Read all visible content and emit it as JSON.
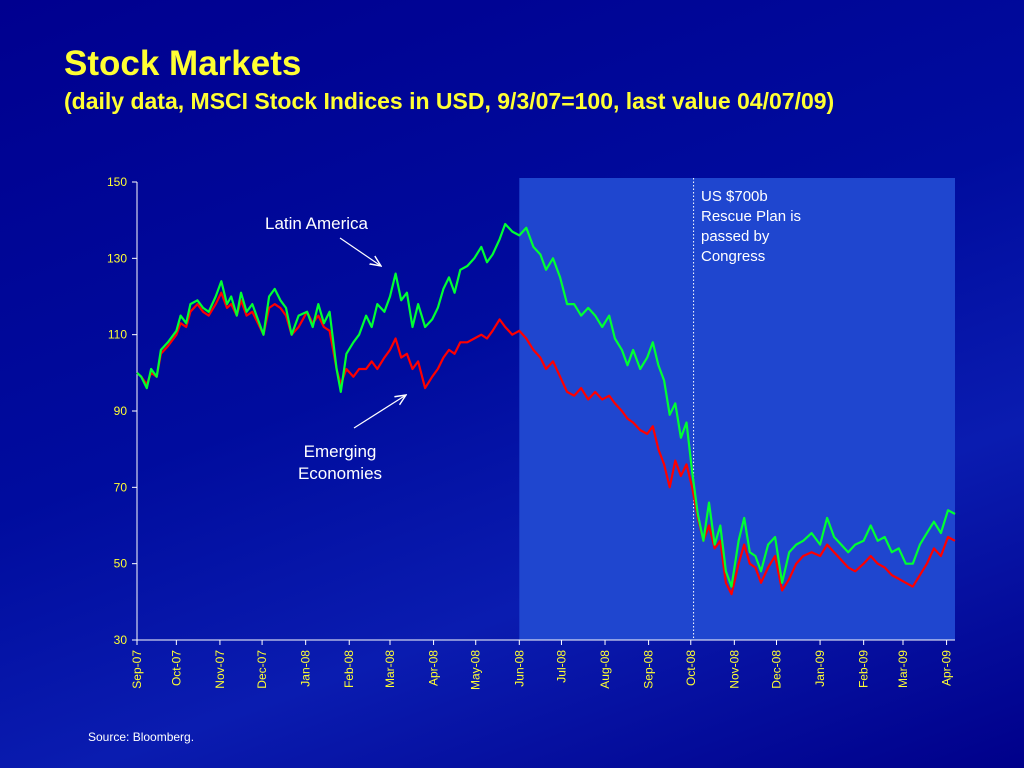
{
  "title": "Stock Markets",
  "subtitle": "(daily data, MSCI Stock Indices in USD, 9/3/07=100, last value 04/07/09)",
  "source": "Source: Bloomberg.",
  "annotations": {
    "latin_america": "Latin America",
    "emerging_economies_line1": "Emerging",
    "emerging_economies_line2": "Economies",
    "rescue_line1": "US $700b",
    "rescue_line2": "Rescue Plan is",
    "rescue_line3": "passed by",
    "rescue_line4": "Congress"
  },
  "colors": {
    "background": "#000c9e",
    "title": "#ffff33",
    "latin_america": "#00ff33",
    "emerging_economies": "#ff0000",
    "shaded_region": "#1f46cf",
    "axis": "#ffffff"
  },
  "chart_data": {
    "type": "line",
    "xlabel": "",
    "ylabel": "",
    "ylim": [
      30,
      150
    ],
    "yticks": [
      30,
      50,
      70,
      90,
      110,
      130,
      150
    ],
    "xlim": [
      "2007-09-03",
      "2009-04-07"
    ],
    "xticks": [
      "Sep-07",
      "Oct-07",
      "Nov-07",
      "Dec-07",
      "Jan-08",
      "Feb-08",
      "Mar-08",
      "Apr-08",
      "May-08",
      "Jun-08",
      "Jul-08",
      "Aug-08",
      "Sep-08",
      "Oct-08",
      "Nov-08",
      "Dec-08",
      "Jan-09",
      "Feb-09",
      "Mar-09",
      "Apr-09"
    ],
    "xtick_dates": [
      "2007-09-01",
      "2007-10-01",
      "2007-11-01",
      "2007-12-01",
      "2008-01-01",
      "2008-02-01",
      "2008-03-01",
      "2008-04-01",
      "2008-05-01",
      "2008-06-01",
      "2008-07-01",
      "2008-08-01",
      "2008-09-01",
      "2008-10-01",
      "2008-11-01",
      "2008-12-01",
      "2009-01-01",
      "2009-02-01",
      "2009-03-01",
      "2009-04-01"
    ],
    "shaded_region": [
      "2008-06-01",
      "2009-04-07"
    ],
    "event_line": "2008-10-03",
    "grid": false,
    "series": [
      {
        "name": "Latin America",
        "color": "#00ff33",
        "points": [
          [
            "2007-09-03",
            100
          ],
          [
            "2007-09-06",
            99
          ],
          [
            "2007-09-10",
            96
          ],
          [
            "2007-09-13",
            101
          ],
          [
            "2007-09-17",
            99
          ],
          [
            "2007-09-20",
            106
          ],
          [
            "2007-09-25",
            108
          ],
          [
            "2007-10-01",
            111
          ],
          [
            "2007-10-04",
            115
          ],
          [
            "2007-10-08",
            113
          ],
          [
            "2007-10-11",
            118
          ],
          [
            "2007-10-16",
            119
          ],
          [
            "2007-10-20",
            117
          ],
          [
            "2007-10-24",
            116
          ],
          [
            "2007-10-29",
            120
          ],
          [
            "2007-11-02",
            124
          ],
          [
            "2007-11-06",
            118
          ],
          [
            "2007-11-09",
            120
          ],
          [
            "2007-11-13",
            115
          ],
          [
            "2007-11-16",
            121
          ],
          [
            "2007-11-20",
            116
          ],
          [
            "2007-11-24",
            118
          ],
          [
            "2007-11-28",
            114
          ],
          [
            "2007-12-02",
            110
          ],
          [
            "2007-12-06",
            120
          ],
          [
            "2007-12-10",
            122
          ],
          [
            "2007-12-14",
            119
          ],
          [
            "2007-12-18",
            117
          ],
          [
            "2007-12-22",
            110
          ],
          [
            "2007-12-27",
            115
          ],
          [
            "2008-01-02",
            116
          ],
          [
            "2008-01-06",
            112
          ],
          [
            "2008-01-10",
            118
          ],
          [
            "2008-01-14",
            113
          ],
          [
            "2008-01-18",
            116
          ],
          [
            "2008-01-23",
            101
          ],
          [
            "2008-01-26",
            95
          ],
          [
            "2008-01-30",
            105
          ],
          [
            "2008-02-04",
            108
          ],
          [
            "2008-02-08",
            110
          ],
          [
            "2008-02-13",
            115
          ],
          [
            "2008-02-17",
            112
          ],
          [
            "2008-02-21",
            118
          ],
          [
            "2008-02-26",
            116
          ],
          [
            "2008-03-01",
            120
          ],
          [
            "2008-03-05",
            126
          ],
          [
            "2008-03-09",
            119
          ],
          [
            "2008-03-13",
            121
          ],
          [
            "2008-03-17",
            112
          ],
          [
            "2008-03-21",
            118
          ],
          [
            "2008-03-26",
            112
          ],
          [
            "2008-03-31",
            114
          ],
          [
            "2008-04-04",
            117
          ],
          [
            "2008-04-08",
            122
          ],
          [
            "2008-04-12",
            125
          ],
          [
            "2008-04-16",
            121
          ],
          [
            "2008-04-20",
            127
          ],
          [
            "2008-04-25",
            128
          ],
          [
            "2008-04-30",
            130
          ],
          [
            "2008-05-05",
            133
          ],
          [
            "2008-05-09",
            129
          ],
          [
            "2008-05-13",
            131
          ],
          [
            "2008-05-18",
            135
          ],
          [
            "2008-05-22",
            139
          ],
          [
            "2008-05-27",
            137
          ],
          [
            "2008-06-01",
            136
          ],
          [
            "2008-06-06",
            138
          ],
          [
            "2008-06-11",
            133
          ],
          [
            "2008-06-16",
            131
          ],
          [
            "2008-06-20",
            127
          ],
          [
            "2008-06-25",
            130
          ],
          [
            "2008-06-30",
            125
          ],
          [
            "2008-07-05",
            118
          ],
          [
            "2008-07-10",
            118
          ],
          [
            "2008-07-15",
            115
          ],
          [
            "2008-07-20",
            117
          ],
          [
            "2008-07-25",
            115
          ],
          [
            "2008-07-30",
            112
          ],
          [
            "2008-08-04",
            115
          ],
          [
            "2008-08-08",
            109
          ],
          [
            "2008-08-13",
            106
          ],
          [
            "2008-08-17",
            102
          ],
          [
            "2008-08-21",
            106
          ],
          [
            "2008-08-26",
            101
          ],
          [
            "2008-08-31",
            104
          ],
          [
            "2008-09-04",
            108
          ],
          [
            "2008-09-08",
            102
          ],
          [
            "2008-09-12",
            98
          ],
          [
            "2008-09-16",
            89
          ],
          [
            "2008-09-20",
            92
          ],
          [
            "2008-09-24",
            83
          ],
          [
            "2008-09-28",
            87
          ],
          [
            "2008-10-02",
            74
          ],
          [
            "2008-10-06",
            63
          ],
          [
            "2008-10-10",
            56
          ],
          [
            "2008-10-14",
            66
          ],
          [
            "2008-10-18",
            55
          ],
          [
            "2008-10-22",
            60
          ],
          [
            "2008-10-26",
            48
          ],
          [
            "2008-10-30",
            44
          ],
          [
            "2008-11-04",
            56
          ],
          [
            "2008-11-08",
            62
          ],
          [
            "2008-11-12",
            53
          ],
          [
            "2008-11-16",
            52
          ],
          [
            "2008-11-20",
            48
          ],
          [
            "2008-11-25",
            55
          ],
          [
            "2008-11-30",
            57
          ],
          [
            "2008-12-05",
            45
          ],
          [
            "2008-12-10",
            53
          ],
          [
            "2008-12-15",
            55
          ],
          [
            "2008-12-20",
            56
          ],
          [
            "2008-12-26",
            58
          ],
          [
            "2009-01-01",
            55
          ],
          [
            "2009-01-06",
            62
          ],
          [
            "2009-01-11",
            57
          ],
          [
            "2009-01-16",
            55
          ],
          [
            "2009-01-21",
            53
          ],
          [
            "2009-01-26",
            55
          ],
          [
            "2009-02-01",
            56
          ],
          [
            "2009-02-06",
            60
          ],
          [
            "2009-02-11",
            56
          ],
          [
            "2009-02-16",
            57
          ],
          [
            "2009-02-21",
            53
          ],
          [
            "2009-02-26",
            54
          ],
          [
            "2009-03-03",
            50
          ],
          [
            "2009-03-08",
            50
          ],
          [
            "2009-03-13",
            55
          ],
          [
            "2009-03-18",
            58
          ],
          [
            "2009-03-23",
            61
          ],
          [
            "2009-03-28",
            58
          ],
          [
            "2009-04-02",
            64
          ],
          [
            "2009-04-07",
            63
          ]
        ]
      },
      {
        "name": "Emerging Economies",
        "color": "#ff0000",
        "points": [
          [
            "2007-09-03",
            100
          ],
          [
            "2007-09-06",
            99
          ],
          [
            "2007-09-10",
            97
          ],
          [
            "2007-09-13",
            100
          ],
          [
            "2007-09-17",
            99
          ],
          [
            "2007-09-20",
            105
          ],
          [
            "2007-09-25",
            107
          ],
          [
            "2007-10-01",
            110
          ],
          [
            "2007-10-04",
            113
          ],
          [
            "2007-10-08",
            112
          ],
          [
            "2007-10-11",
            116
          ],
          [
            "2007-10-16",
            118
          ],
          [
            "2007-10-20",
            116
          ],
          [
            "2007-10-24",
            115
          ],
          [
            "2007-10-29",
            118
          ],
          [
            "2007-11-02",
            121
          ],
          [
            "2007-11-06",
            117
          ],
          [
            "2007-11-09",
            118
          ],
          [
            "2007-11-13",
            115
          ],
          [
            "2007-11-16",
            119
          ],
          [
            "2007-11-20",
            115
          ],
          [
            "2007-11-24",
            116
          ],
          [
            "2007-11-28",
            113
          ],
          [
            "2007-12-02",
            110
          ],
          [
            "2007-12-06",
            117
          ],
          [
            "2007-12-10",
            118
          ],
          [
            "2007-12-14",
            117
          ],
          [
            "2007-12-18",
            115
          ],
          [
            "2007-12-22",
            110
          ],
          [
            "2007-12-27",
            112
          ],
          [
            "2008-01-02",
            116
          ],
          [
            "2008-01-06",
            113
          ],
          [
            "2008-01-10",
            115
          ],
          [
            "2008-01-14",
            112
          ],
          [
            "2008-01-18",
            111
          ],
          [
            "2008-01-23",
            101
          ],
          [
            "2008-01-26",
            97
          ],
          [
            "2008-01-30",
            101
          ],
          [
            "2008-02-04",
            99
          ],
          [
            "2008-02-08",
            101
          ],
          [
            "2008-02-13",
            101
          ],
          [
            "2008-02-17",
            103
          ],
          [
            "2008-02-21",
            101
          ],
          [
            "2008-02-26",
            104
          ],
          [
            "2008-03-01",
            106
          ],
          [
            "2008-03-05",
            109
          ],
          [
            "2008-03-09",
            104
          ],
          [
            "2008-03-13",
            105
          ],
          [
            "2008-03-17",
            101
          ],
          [
            "2008-03-21",
            103
          ],
          [
            "2008-03-26",
            96
          ],
          [
            "2008-03-31",
            99
          ],
          [
            "2008-04-04",
            101
          ],
          [
            "2008-04-08",
            104
          ],
          [
            "2008-04-12",
            106
          ],
          [
            "2008-04-16",
            105
          ],
          [
            "2008-04-20",
            108
          ],
          [
            "2008-04-25",
            108
          ],
          [
            "2008-04-30",
            109
          ],
          [
            "2008-05-05",
            110
          ],
          [
            "2008-05-09",
            109
          ],
          [
            "2008-05-13",
            111
          ],
          [
            "2008-05-18",
            114
          ],
          [
            "2008-05-22",
            112
          ],
          [
            "2008-05-27",
            110
          ],
          [
            "2008-06-01",
            111
          ],
          [
            "2008-06-06",
            109
          ],
          [
            "2008-06-11",
            106
          ],
          [
            "2008-06-16",
            104
          ],
          [
            "2008-06-20",
            101
          ],
          [
            "2008-06-25",
            103
          ],
          [
            "2008-06-30",
            99
          ],
          [
            "2008-07-05",
            95
          ],
          [
            "2008-07-10",
            94
          ],
          [
            "2008-07-15",
            96
          ],
          [
            "2008-07-20",
            93
          ],
          [
            "2008-07-25",
            95
          ],
          [
            "2008-07-30",
            93
          ],
          [
            "2008-08-04",
            94
          ],
          [
            "2008-08-08",
            92
          ],
          [
            "2008-08-13",
            90
          ],
          [
            "2008-08-17",
            88
          ],
          [
            "2008-08-21",
            87
          ],
          [
            "2008-08-26",
            85
          ],
          [
            "2008-08-31",
            84
          ],
          [
            "2008-09-04",
            86
          ],
          [
            "2008-09-08",
            80
          ],
          [
            "2008-09-12",
            76
          ],
          [
            "2008-09-16",
            70
          ],
          [
            "2008-09-20",
            77
          ],
          [
            "2008-09-24",
            73
          ],
          [
            "2008-09-28",
            76
          ],
          [
            "2008-10-02",
            70
          ],
          [
            "2008-10-06",
            62
          ],
          [
            "2008-10-10",
            56
          ],
          [
            "2008-10-14",
            60
          ],
          [
            "2008-10-18",
            54
          ],
          [
            "2008-10-22",
            56
          ],
          [
            "2008-10-26",
            45
          ],
          [
            "2008-10-30",
            42
          ],
          [
            "2008-11-04",
            50
          ],
          [
            "2008-11-08",
            55
          ],
          [
            "2008-11-12",
            50
          ],
          [
            "2008-11-16",
            49
          ],
          [
            "2008-11-20",
            45
          ],
          [
            "2008-11-25",
            49
          ],
          [
            "2008-11-30",
            52
          ],
          [
            "2008-12-05",
            43
          ],
          [
            "2008-12-10",
            46
          ],
          [
            "2008-12-15",
            50
          ],
          [
            "2008-12-20",
            52
          ],
          [
            "2008-12-26",
            53
          ],
          [
            "2009-01-01",
            52
          ],
          [
            "2009-01-06",
            55
          ],
          [
            "2009-01-11",
            53
          ],
          [
            "2009-01-16",
            51
          ],
          [
            "2009-01-21",
            49
          ],
          [
            "2009-01-26",
            48
          ],
          [
            "2009-02-01",
            50
          ],
          [
            "2009-02-06",
            52
          ],
          [
            "2009-02-11",
            50
          ],
          [
            "2009-02-16",
            49
          ],
          [
            "2009-02-21",
            47
          ],
          [
            "2009-02-26",
            46
          ],
          [
            "2009-03-03",
            45
          ],
          [
            "2009-03-08",
            44
          ],
          [
            "2009-03-13",
            47
          ],
          [
            "2009-03-18",
            50
          ],
          [
            "2009-03-23",
            54
          ],
          [
            "2009-03-28",
            52
          ],
          [
            "2009-04-02",
            57
          ],
          [
            "2009-04-07",
            56
          ]
        ]
      }
    ]
  }
}
